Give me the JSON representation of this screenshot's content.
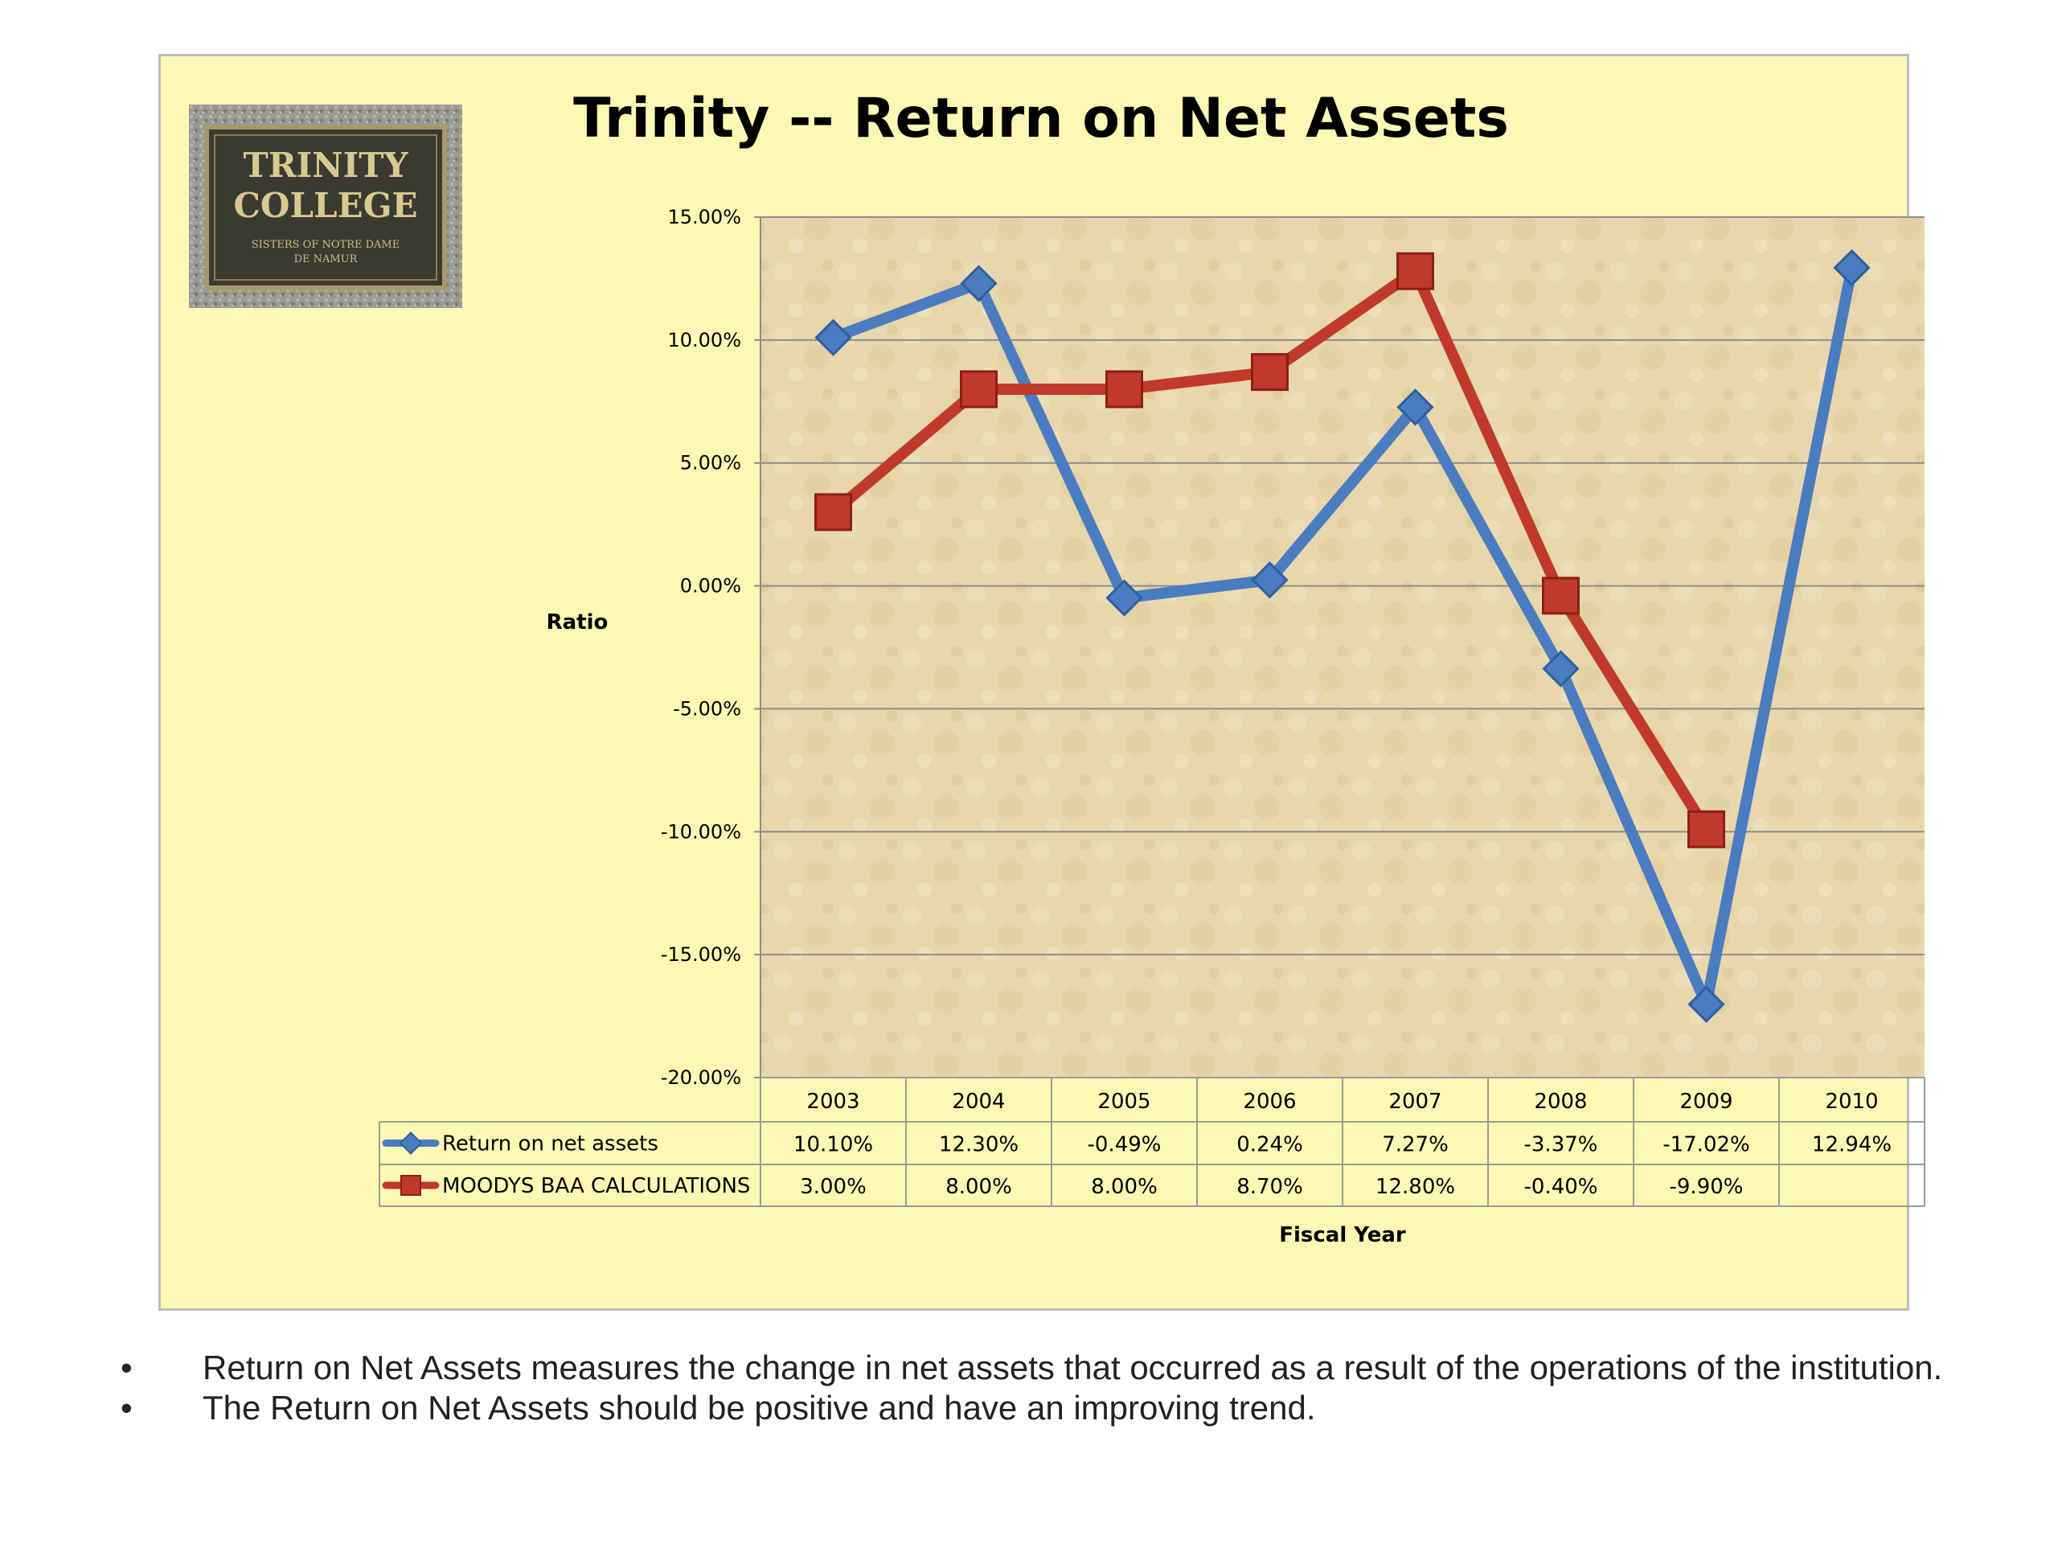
{
  "chart_data": {
    "type": "line",
    "title": "Trinity -- Return on Net Assets",
    "ylabel": "Ratio",
    "xlabel": "Fiscal Year",
    "ylim": [
      -20,
      15
    ],
    "yticks": [
      15,
      10,
      5,
      0,
      -5,
      -10,
      -15,
      -20
    ],
    "ytick_labels": [
      "15.00%",
      "10.00%",
      "5.00%",
      "0.00%",
      "-5.00%",
      "-10.00%",
      "-15.00%",
      "-20.00%"
    ],
    "categories": [
      "2003",
      "2004",
      "2005",
      "2006",
      "2007",
      "2008",
      "2009",
      "2010"
    ],
    "grid": true,
    "legend_placement": "data table",
    "series": [
      {
        "name": "Return on net assets",
        "color": "#4a7cc0",
        "marker": "diamond",
        "values": [
          10.1,
          12.3,
          -0.49,
          0.24,
          7.27,
          -3.37,
          -17.02,
          12.94
        ],
        "labels": [
          "10.10%",
          "12.30%",
          "-0.49%",
          "0.24%",
          "7.27%",
          "-3.37%",
          "-17.02%",
          "12.94%"
        ]
      },
      {
        "name": "MOODYS BAA CALCULATIONS",
        "color": "#c0392b",
        "marker": "square",
        "values": [
          3.0,
          8.0,
          8.0,
          8.7,
          12.8,
          -0.4,
          -9.9,
          null
        ],
        "labels": [
          "3.00%",
          "8.00%",
          "8.00%",
          "8.70%",
          "12.80%",
          "-0.40%",
          "-9.90%",
          ""
        ]
      }
    ]
  },
  "logo": {
    "line1": "TRINITY",
    "line2": "COLLEGE",
    "line3": "SISTERS OF NOTRE DAME",
    "line4": "DE NAMUR"
  },
  "notes": [
    "Return on Net Assets measures the change in net assets that occurred as a result of the operations of the institution.",
    "The Return on Net Assets should be positive and have an improving trend."
  ],
  "bullet": "•",
  "colors": {
    "panel_background": "#fdf8b3",
    "plot_background": "#e8d7ad",
    "blue_series": "#4a7cc0",
    "red_series": "#c0392b"
  }
}
